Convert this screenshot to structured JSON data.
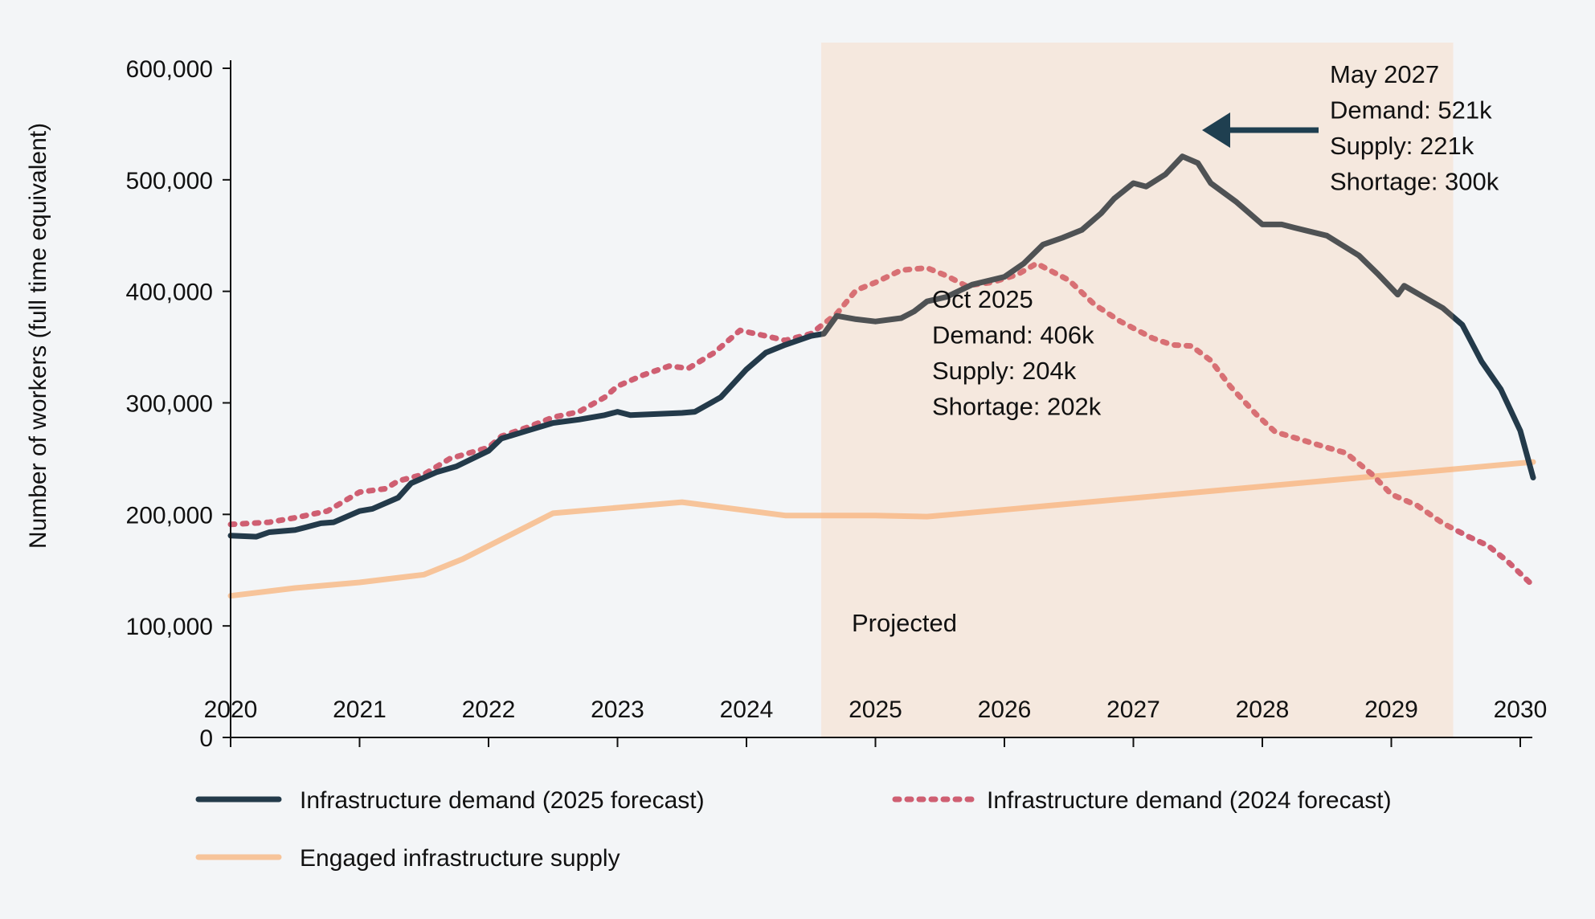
{
  "chart_data": {
    "type": "line",
    "title": "",
    "xlabel": "",
    "ylabel": "Number of workers (full time equivalent)",
    "xlim": [
      2020,
      2030.1
    ],
    "ylim": [
      0,
      600000
    ],
    "x_ticks": [
      "2020",
      "2021",
      "2022",
      "2023",
      "2024",
      "2025",
      "2026",
      "2027",
      "2028",
      "2029",
      "2030"
    ],
    "y_ticks": [
      "0",
      "100,000",
      "200,000",
      "300,000",
      "400,000",
      "500,000",
      "600,000"
    ],
    "grid": false,
    "legend_position": "bottom",
    "projected_region": {
      "label": "Projected",
      "x_start": 2024.58,
      "x_end": 2029.48,
      "color": "#f5e8df"
    },
    "series": [
      {
        "name": "Infrastructure demand (2025 forecast)",
        "color": "#233a4a",
        "style": "solid",
        "x": [
          2020.0,
          2020.2,
          2020.3,
          2020.5,
          2020.7,
          2020.8,
          2021.0,
          2021.1,
          2021.3,
          2021.4,
          2021.6,
          2021.75,
          2022.0,
          2022.1,
          2022.3,
          2022.5,
          2022.7,
          2022.9,
          2023.0,
          2023.1,
          2023.3,
          2023.5,
          2023.6,
          2023.8,
          2024.0,
          2024.15,
          2024.3,
          2024.5,
          2024.6,
          2024.7,
          2024.85,
          2025.0,
          2025.2,
          2025.3,
          2025.4,
          2025.55,
          2025.75,
          2026.0,
          2026.15,
          2026.3,
          2026.45,
          2026.6,
          2026.75,
          2026.85,
          2027.0,
          2027.1,
          2027.25,
          2027.38,
          2027.5,
          2027.6,
          2027.8,
          2028.0,
          2028.15,
          2028.25,
          2028.5,
          2028.75,
          2028.9,
          2029.05,
          2029.1,
          2029.4,
          2029.55,
          2029.7,
          2029.85,
          2030.0,
          2030.1
        ],
        "values": [
          181000,
          180000,
          184000,
          186000,
          192000,
          193000,
          203000,
          205000,
          215000,
          228000,
          238000,
          243000,
          257000,
          268000,
          275000,
          282000,
          285000,
          289000,
          292000,
          289000,
          290000,
          291000,
          292000,
          305000,
          330000,
          345000,
          352000,
          360000,
          362000,
          378000,
          375000,
          373000,
          376000,
          382000,
          391000,
          395000,
          406000,
          413000,
          425000,
          442000,
          448000,
          455000,
          470000,
          483000,
          497000,
          494000,
          505000,
          521000,
          515000,
          497000,
          480000,
          460000,
          460000,
          457000,
          450000,
          432000,
          415000,
          397000,
          405000,
          385000,
          370000,
          337000,
          312000,
          275000,
          233000
        ]
      },
      {
        "name": "Infrastructure demand (2024 forecast)",
        "color": "#cf5f72",
        "style": "dotted",
        "x": [
          2020.0,
          2020.3,
          2020.5,
          2020.75,
          2021.0,
          2021.2,
          2021.3,
          2021.5,
          2021.7,
          2022.0,
          2022.1,
          2022.3,
          2022.5,
          2022.7,
          2022.9,
          2023.0,
          2023.2,
          2023.4,
          2023.55,
          2023.75,
          2023.95,
          2024.15,
          2024.3,
          2024.5,
          2024.7,
          2024.85,
          2025.0,
          2025.2,
          2025.4,
          2025.55,
          2025.7,
          2025.9,
          2026.1,
          2026.25,
          2026.5,
          2026.7,
          2026.9,
          2027.15,
          2027.3,
          2027.45,
          2027.6,
          2027.75,
          2027.95,
          2028.1,
          2028.3,
          2028.5,
          2028.65,
          2028.85,
          2029.0,
          2029.2,
          2029.4,
          2029.6,
          2029.75,
          2029.9,
          2030.1
        ],
        "values": [
          191000,
          193000,
          197000,
          203000,
          220000,
          223000,
          230000,
          236000,
          250000,
          260000,
          270000,
          278000,
          287000,
          292000,
          305000,
          315000,
          325000,
          333000,
          331000,
          345000,
          365000,
          360000,
          356000,
          362000,
          380000,
          401000,
          408000,
          419000,
          421000,
          414000,
          405000,
          408000,
          415000,
          425000,
          410000,
          388000,
          373000,
          358000,
          352000,
          351000,
          338000,
          315000,
          290000,
          274000,
          267000,
          260000,
          255000,
          236000,
          218000,
          208000,
          192000,
          180000,
          172000,
          158000,
          136000
        ]
      },
      {
        "name": "Engaged infrastructure supply",
        "color": "#f7c49a",
        "style": "solid",
        "x": [
          2020.0,
          2020.5,
          2021.0,
          2021.5,
          2021.8,
          2022.5,
          2023.5,
          2024.3,
          2025.0,
          2025.4,
          2025.6,
          2030.1
        ],
        "values": [
          127000,
          134000,
          139000,
          146000,
          160000,
          201000,
          211000,
          199000,
          199000,
          198000,
          200000,
          247000
        ]
      }
    ],
    "annotations": [
      {
        "lines": [
          "Oct 2025",
          "Demand: 406k",
          "Supply: 204k",
          "Shortage: 202k"
        ]
      },
      {
        "lines": [
          "May 2027",
          "Demand: 521k",
          "Supply: 221k",
          "Shortage: 300k"
        ],
        "arrow": "left",
        "arrow_color": "#1f3f50"
      }
    ]
  }
}
